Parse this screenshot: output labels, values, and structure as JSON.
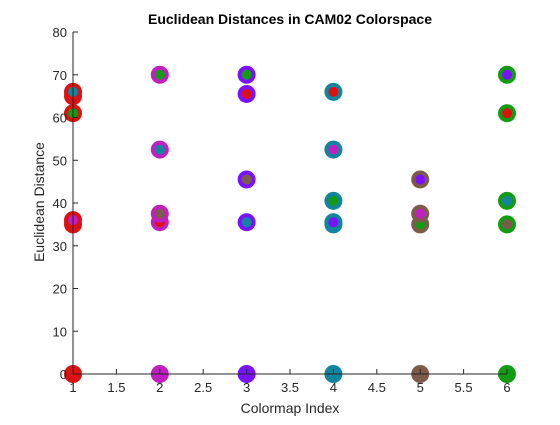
{
  "chart_data": {
    "type": "scatter",
    "title": "Euclidean Distances in CAM02 Colorspace",
    "xlabel": "Colormap Index",
    "ylabel": "Euclidean Distance",
    "xlim": [
      1,
      6
    ],
    "ylim": [
      0,
      80
    ],
    "xticks": [
      1,
      1.5,
      2,
      2.5,
      3,
      3.5,
      4,
      4.5,
      5,
      5.5,
      6
    ],
    "xtick_labels": [
      "1",
      "1.5",
      "2",
      "2.5",
      "3",
      "3.5",
      "4",
      "4.5",
      "5",
      "5.5",
      "6"
    ],
    "yticks": [
      0,
      10,
      20,
      30,
      40,
      50,
      60,
      70,
      80
    ],
    "ytick_labels": [
      "0",
      "10",
      "20",
      "30",
      "40",
      "50",
      "60",
      "70",
      "80"
    ],
    "grid": false,
    "box": "left-bottom axes only",
    "colors": {
      "c1": "#dd1111",
      "c2": "#c21fc2",
      "c3": "#7a12ff",
      "c4": "#11849e",
      "c5": "#7d5a4a",
      "c6": "#139c13"
    },
    "points": [
      {
        "x": 1,
        "y": 0,
        "outer": "c1",
        "inner": "c1"
      },
      {
        "x": 1,
        "y": 35,
        "outer": "c1",
        "inner": "c5"
      },
      {
        "x": 1,
        "y": 36,
        "outer": "c1",
        "inner": "c2"
      },
      {
        "x": 1,
        "y": 61,
        "outer": "c1",
        "inner": "c6"
      },
      {
        "x": 1,
        "y": 65,
        "outer": "c1",
        "inner": "c3"
      },
      {
        "x": 1,
        "y": 66,
        "outer": "c1",
        "inner": "c4"
      },
      {
        "x": 2,
        "y": 0,
        "outer": "c2",
        "inner": "c2"
      },
      {
        "x": 2,
        "y": 35.5,
        "outer": "c2",
        "inner": "c1"
      },
      {
        "x": 2,
        "y": 37.5,
        "outer": "c2",
        "inner": "c5"
      },
      {
        "x": 2,
        "y": 52.5,
        "outer": "c2",
        "inner": "c4"
      },
      {
        "x": 2,
        "y": 70,
        "outer": "c2",
        "inner": "c6"
      },
      {
        "x": 3,
        "y": 0,
        "outer": "c3",
        "inner": "c3"
      },
      {
        "x": 3,
        "y": 35.5,
        "outer": "c3",
        "inner": "c4"
      },
      {
        "x": 3,
        "y": 45.5,
        "outer": "c3",
        "inner": "c5"
      },
      {
        "x": 3,
        "y": 65.5,
        "outer": "c3",
        "inner": "c1"
      },
      {
        "x": 3,
        "y": 70,
        "outer": "c3",
        "inner": "c6"
      },
      {
        "x": 4,
        "y": 0,
        "outer": "c4",
        "inner": "c4"
      },
      {
        "x": 4,
        "y": 35,
        "outer": "c4",
        "inner": "c5"
      },
      {
        "x": 4,
        "y": 35.5,
        "outer": "c4",
        "inner": "c3"
      },
      {
        "x": 4,
        "y": 40.5,
        "outer": "c4",
        "inner": "c6"
      },
      {
        "x": 4,
        "y": 52.5,
        "outer": "c4",
        "inner": "c2"
      },
      {
        "x": 4,
        "y": 66,
        "outer": "c4",
        "inner": "c1"
      },
      {
        "x": 5,
        "y": 0,
        "outer": "c5",
        "inner": "c5"
      },
      {
        "x": 5,
        "y": 35,
        "outer": "c5",
        "inner": "c6"
      },
      {
        "x": 5,
        "y": 37.5,
        "outer": "c5",
        "inner": "c2"
      },
      {
        "x": 5,
        "y": 45.5,
        "outer": "c5",
        "inner": "c3"
      },
      {
        "x": 6,
        "y": 0,
        "outer": "c6",
        "inner": "c6"
      },
      {
        "x": 6,
        "y": 35,
        "outer": "c6",
        "inner": "c5"
      },
      {
        "x": 6,
        "y": 40.5,
        "outer": "c6",
        "inner": "c4"
      },
      {
        "x": 6,
        "y": 61,
        "outer": "c6",
        "inner": "c1"
      },
      {
        "x": 6,
        "y": 70,
        "outer": "c6",
        "inner": "c3"
      }
    ]
  }
}
